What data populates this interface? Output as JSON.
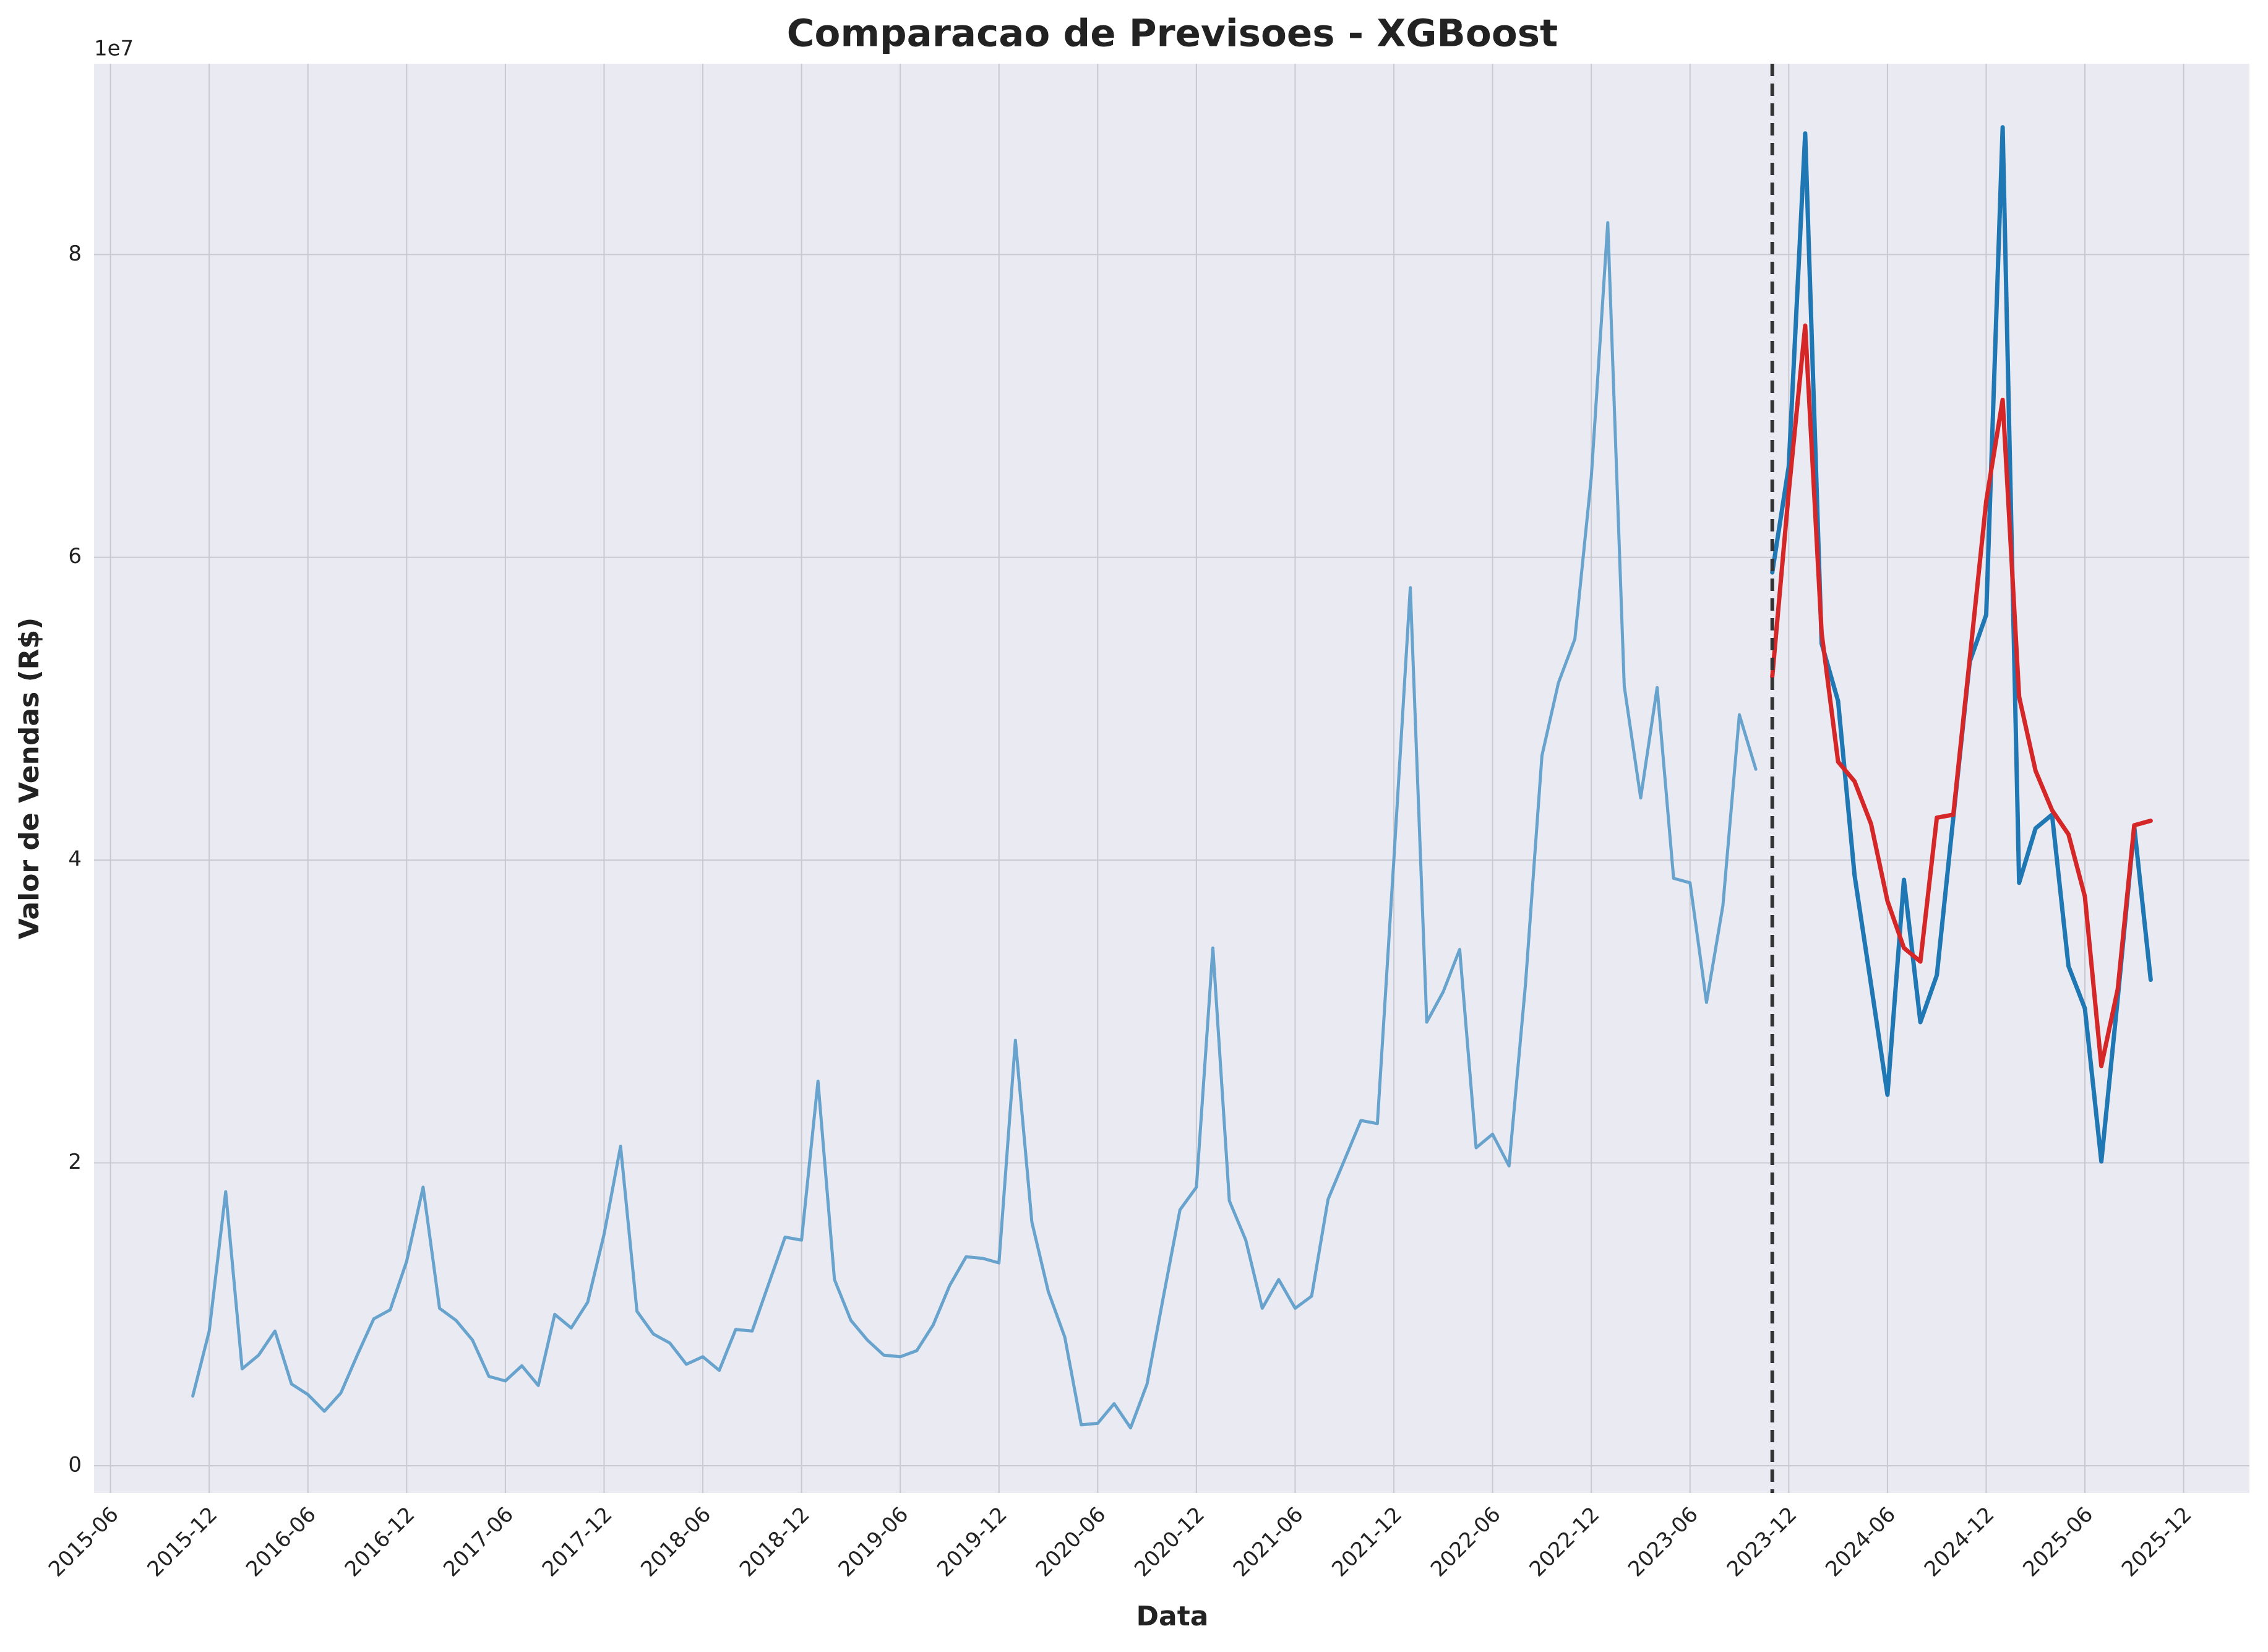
{
  "chart_data": {
    "type": "line",
    "title": "Comparacao de Previsoes - XGBoost",
    "xlabel": "Data",
    "ylabel": "Valor de Vendas (R$)",
    "y_offset_label": "1e7",
    "xlim": [
      "2015-05",
      "2026-04"
    ],
    "xticks": [
      "2015-06",
      "2015-12",
      "2016-06",
      "2016-12",
      "2017-06",
      "2017-12",
      "2018-06",
      "2018-12",
      "2019-06",
      "2019-12",
      "2020-06",
      "2020-12",
      "2021-06",
      "2021-12",
      "2022-06",
      "2022-12",
      "2023-06",
      "2023-12",
      "2024-06",
      "2024-12",
      "2025-06",
      "2025-12"
    ],
    "ylim": [
      -0.18,
      9.26
    ],
    "yticks": [
      0,
      2,
      4,
      6,
      8
    ],
    "grid": true,
    "split_line": true,
    "series": [
      {
        "color": "#5a9bc9",
        "width": 5,
        "x": [
          "2015-11",
          "2015-12",
          "2016-01",
          "2016-02",
          "2016-03",
          "2016-04",
          "2016-05",
          "2016-06",
          "2016-07",
          "2016-08",
          "2016-09",
          "2016-10",
          "2016-11",
          "2016-12",
          "2017-01",
          "2017-02",
          "2017-03",
          "2017-04",
          "2017-05",
          "2017-06",
          "2017-07",
          "2017-08",
          "2017-09",
          "2017-10",
          "2017-11",
          "2017-12",
          "2018-01",
          "2018-02",
          "2018-03",
          "2018-04",
          "2018-05",
          "2018-06",
          "2018-07",
          "2018-08",
          "2018-09",
          "2018-10",
          "2018-11",
          "2018-12",
          "2019-01",
          "2019-02",
          "2019-03",
          "2019-04",
          "2019-05",
          "2019-06",
          "2019-07",
          "2019-08",
          "2019-09",
          "2019-10",
          "2019-11",
          "2019-12",
          "2020-01",
          "2020-02",
          "2020-03",
          "2020-04",
          "2020-05",
          "2020-06",
          "2020-07",
          "2020-08",
          "2020-09",
          "2020-10",
          "2020-11",
          "2020-12",
          "2021-01",
          "2021-02",
          "2021-03",
          "2021-04",
          "2021-05",
          "2021-06",
          "2021-07",
          "2021-08",
          "2021-09",
          "2021-10",
          "2021-11",
          "2021-12",
          "2022-01",
          "2022-02",
          "2022-03",
          "2022-04",
          "2022-05",
          "2022-06",
          "2022-07",
          "2022-08",
          "2022-09",
          "2022-10",
          "2022-11",
          "2022-12",
          "2023-01",
          "2023-02",
          "2023-03",
          "2023-04",
          "2023-05",
          "2023-06",
          "2023-07",
          "2023-08",
          "2023-09",
          "2023-10"
        ],
        "values": [
          0.46,
          0.89,
          1.81,
          0.64,
          0.73,
          0.89,
          0.54,
          0.47,
          0.36,
          0.48,
          0.73,
          0.97,
          1.03,
          1.35,
          1.84,
          1.04,
          0.96,
          0.83,
          0.59,
          0.56,
          0.66,
          0.53,
          1.0,
          0.91,
          1.08,
          1.53,
          2.11,
          1.02,
          0.87,
          0.81,
          0.67,
          0.72,
          0.63,
          0.9,
          0.89,
          1.2,
          1.51,
          1.49,
          2.54,
          1.23,
          0.96,
          0.83,
          0.73,
          0.72,
          0.76,
          0.93,
          1.19,
          1.38,
          1.37,
          1.34,
          2.81,
          1.61,
          1.15,
          0.85,
          0.27,
          0.28,
          0.41,
          0.25,
          0.54,
          1.12,
          1.69,
          1.84,
          3.42,
          1.75,
          1.49,
          1.04,
          1.23,
          1.04,
          1.12,
          1.76,
          2.02,
          2.28,
          2.26,
          4.0,
          5.8,
          2.93,
          3.13,
          3.41,
          2.1,
          2.19,
          1.98,
          3.18,
          4.69,
          5.17,
          5.46,
          6.53,
          8.21,
          5.15,
          4.41,
          5.14,
          3.88,
          3.85,
          3.06,
          3.7,
          4.96,
          4.6
        ]
      },
      {
        "color": "#1f77b4",
        "width": 7,
        "x": [
          "2023-11",
          "2023-12",
          "2024-01",
          "2024-02",
          "2024-03",
          "2024-04",
          "2024-05",
          "2024-06",
          "2024-07",
          "2024-08",
          "2024-09",
          "2024-10",
          "2024-11",
          "2024-12",
          "2025-01",
          "2025-02",
          "2025-03",
          "2025-04",
          "2025-05",
          "2025-06",
          "2025-07",
          "2025-08",
          "2025-09",
          "2025-10"
        ],
        "values": [
          5.9,
          6.6,
          8.8,
          5.43,
          5.05,
          3.9,
          3.18,
          2.45,
          3.87,
          2.93,
          3.24,
          4.28,
          5.31,
          5.62,
          8.84,
          3.85,
          4.21,
          4.3,
          3.3,
          3.02,
          2.01,
          3.09,
          4.22,
          3.21
        ]
      },
      {
        "color": "#d62728",
        "width": 7,
        "x": [
          "2023-11",
          "2023-12",
          "2024-01",
          "2024-02",
          "2024-03",
          "2024-04",
          "2024-05",
          "2024-06",
          "2024-07",
          "2024-08",
          "2024-09",
          "2024-10",
          "2024-11",
          "2024-12",
          "2025-01",
          "2025-02",
          "2025-03",
          "2025-04",
          "2025-05",
          "2025-06",
          "2025-07",
          "2025-08",
          "2025-09",
          "2025-10"
        ],
        "values": [
          5.21,
          6.43,
          7.53,
          5.5,
          4.65,
          4.52,
          4.24,
          3.73,
          3.42,
          3.33,
          4.28,
          4.3,
          5.33,
          6.37,
          7.04,
          5.08,
          4.59,
          4.33,
          4.17,
          3.76,
          2.64,
          3.15,
          4.23,
          4.26
        ]
      }
    ]
  }
}
